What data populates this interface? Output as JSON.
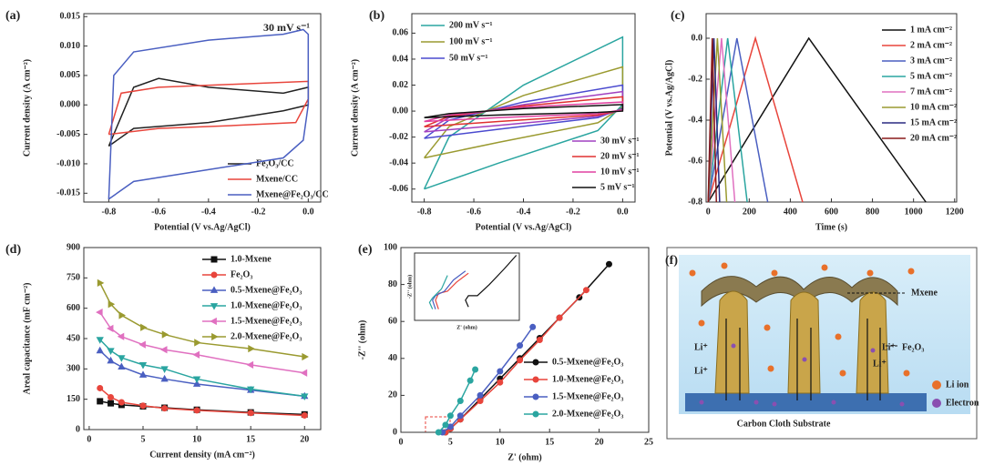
{
  "chart_data": [
    {
      "type": "line",
      "panel_label": "(a)",
      "annotation": "30 mV s⁻¹",
      "xlabel": "Potential (V vs.Ag/AgCl)",
      "ylabel": "Current density (A cm⁻²)",
      "xlim": [
        -0.9,
        0.05
      ],
      "ylim": [
        -0.0165,
        0.0155
      ],
      "xticks": [
        -0.8,
        -0.6,
        -0.4,
        -0.2,
        {
          "value": 0,
          "label": "0.0"
        }
      ],
      "yticks": [
        -0.015,
        {
          "value": -0.01,
          "label": "-0.010"
        },
        -0.005,
        {
          "value": 0,
          "label": "0.000"
        },
        0.005,
        {
          "value": 0.01,
          "label": "0.010"
        },
        0.015
      ],
      "series": [
        {
          "name": "Fe₂O₃/CC",
          "color": "#222222",
          "x": [
            -0.8,
            -0.75,
            -0.7,
            -0.6,
            -0.4,
            -0.1,
            0,
            0,
            -0.1,
            -0.4,
            -0.7,
            -0.8
          ],
          "values": [
            -0.007,
            -0.002,
            0.003,
            0.0045,
            0.003,
            0.002,
            0.003,
            0,
            -0.001,
            -0.003,
            -0.004,
            -0.007
          ]
        },
        {
          "name": "Mxene/CC",
          "color": "#e8453c",
          "x": [
            -0.8,
            -0.75,
            -0.6,
            -0.3,
            0,
            0,
            -0.05,
            -0.3,
            -0.6,
            -0.8
          ],
          "values": [
            -0.005,
            0.002,
            0.003,
            0.0035,
            0.004,
            0.001,
            -0.003,
            -0.0035,
            -0.004,
            -0.005
          ]
        },
        {
          "name": "Mxene@Fe₂O₃/CC",
          "color": "#4a5fc1",
          "x": [
            -0.8,
            -0.78,
            -0.7,
            -0.4,
            -0.1,
            -0.02,
            0,
            0,
            -0.02,
            -0.1,
            -0.4,
            -0.7,
            -0.8
          ],
          "values": [
            -0.016,
            0.005,
            0.009,
            0.011,
            0.012,
            0.0128,
            0.012,
            0,
            -0.006,
            -0.009,
            -0.011,
            -0.013,
            -0.016
          ]
        }
      ]
    },
    {
      "type": "line",
      "panel_label": "(b)",
      "xlabel": "Potential (V vs.Ag/AgCl)",
      "ylabel": "Current density (A cm⁻²)",
      "xlim": [
        -0.85,
        0.05
      ],
      "ylim": [
        -0.07,
        0.075
      ],
      "xticks": [
        -0.8,
        -0.6,
        -0.4,
        -0.2,
        {
          "value": 0,
          "label": "0.0"
        }
      ],
      "yticks": [
        -0.06,
        -0.04,
        -0.02,
        {
          "value": 0,
          "label": "0.00"
        },
        0.02,
        0.04,
        0.06
      ],
      "series": [
        {
          "name": "200 mV s⁻¹",
          "color": "#2aa5a0",
          "x": [
            -0.8,
            -0.7,
            -0.4,
            0,
            0,
            -0.1,
            -0.5,
            -0.8
          ],
          "values": [
            -0.06,
            -0.02,
            0.02,
            0.057,
            0.005,
            -0.015,
            -0.04,
            -0.06
          ]
        },
        {
          "name": "100 mV s⁻¹",
          "color": "#9a9a30",
          "x": [
            -0.8,
            -0.7,
            -0.4,
            0,
            0,
            -0.1,
            -0.5,
            -0.8
          ],
          "values": [
            -0.036,
            -0.012,
            0.012,
            0.034,
            0.003,
            -0.009,
            -0.024,
            -0.036
          ]
        },
        {
          "name": "50 mV s⁻¹",
          "color": "#4a4acf",
          "x": [
            -0.8,
            -0.7,
            -0.4,
            0,
            0,
            -0.1,
            -0.5,
            -0.8
          ],
          "values": [
            -0.021,
            -0.007,
            0.007,
            0.02,
            0.002,
            -0.005,
            -0.014,
            -0.021
          ]
        },
        {
          "name": "30 mV s⁻¹",
          "color": "#a040c0",
          "x": [
            -0.8,
            -0.7,
            -0.4,
            0,
            0,
            -0.1,
            -0.5,
            -0.8
          ],
          "values": [
            -0.016,
            -0.005,
            0.005,
            0.015,
            0.001,
            -0.004,
            -0.011,
            -0.016
          ]
        },
        {
          "name": "20 mV s⁻¹",
          "color": "#e03030",
          "x": [
            -0.8,
            -0.7,
            -0.4,
            0,
            0,
            -0.1,
            -0.5,
            -0.8
          ],
          "values": [
            -0.012,
            -0.004,
            0.004,
            0.011,
            0.001,
            -0.003,
            -0.008,
            -0.012
          ]
        },
        {
          "name": "10 mV s⁻¹",
          "color": "#e040a0",
          "x": [
            -0.8,
            -0.7,
            -0.4,
            0,
            0,
            -0.1,
            -0.5,
            -0.8
          ],
          "values": [
            -0.008,
            -0.003,
            0.003,
            0.007,
            0.001,
            -0.002,
            -0.005,
            -0.008
          ]
        },
        {
          "name": "5 mV s⁻¹",
          "color": "#111111",
          "x": [
            -0.8,
            -0.7,
            -0.4,
            0,
            0,
            -0.1,
            -0.5,
            -0.8
          ],
          "values": [
            -0.005,
            -0.002,
            0.002,
            0.005,
            0,
            -0.001,
            -0.003,
            -0.005
          ]
        }
      ]
    },
    {
      "type": "line",
      "panel_label": "(c)",
      "xlabel": "Time (s)",
      "ylabel": "Potential (V vs.Ag/AgCl)",
      "xlim": [
        -10,
        1210
      ],
      "ylim": [
        -0.8,
        0.12
      ],
      "xticks": [
        0,
        200,
        400,
        600,
        800,
        1000,
        1200
      ],
      "yticks": [
        -0.8,
        -0.6,
        -0.4,
        -0.2,
        {
          "value": 0,
          "label": "0.0"
        }
      ],
      "series": [
        {
          "name": "1 mA cm⁻²",
          "color": "#111111",
          "x": [
            0,
            490,
            1060
          ],
          "values": [
            -0.8,
            0,
            -0.8
          ]
        },
        {
          "name": "2 mA cm⁻²",
          "color": "#e8453c",
          "x": [
            0,
            230,
            460
          ],
          "values": [
            -0.8,
            0,
            -0.8
          ]
        },
        {
          "name": "3 mA cm⁻²",
          "color": "#4a5fc1",
          "x": [
            0,
            140,
            290
          ],
          "values": [
            -0.8,
            0,
            -0.8
          ]
        },
        {
          "name": "5 mA cm⁻²",
          "color": "#2aa5a0",
          "x": [
            0,
            95,
            190
          ],
          "values": [
            -0.8,
            0,
            -0.8
          ]
        },
        {
          "name": "7 mA cm⁻²",
          "color": "#e070c0",
          "x": [
            0,
            65,
            130
          ],
          "values": [
            -0.8,
            0,
            -0.8
          ]
        },
        {
          "name": "10 mA cm⁻²",
          "color": "#9a9a30",
          "x": [
            0,
            45,
            90
          ],
          "values": [
            -0.8,
            0,
            -0.8
          ]
        },
        {
          "name": "15 mA cm⁻²",
          "color": "#2a2a80",
          "x": [
            0,
            28,
            56
          ],
          "values": [
            -0.8,
            0,
            -0.8
          ]
        },
        {
          "name": "20 mA cm⁻²",
          "color": "#8a1a1a",
          "x": [
            0,
            20,
            40
          ],
          "values": [
            -0.8,
            0,
            -0.8
          ]
        }
      ]
    },
    {
      "type": "line",
      "panel_label": "(d)",
      "xlabel": "Current density (mA cm⁻²)",
      "ylabel": "Areal capacitance (mF cm⁻²)",
      "xlim": [
        -0.5,
        21.5
      ],
      "ylim": [
        0,
        900
      ],
      "xticks": [
        0,
        5,
        10,
        15,
        20
      ],
      "yticks": [
        0,
        150,
        300,
        450,
        600,
        750,
        900
      ],
      "x": [
        1,
        2,
        3,
        5,
        7,
        10,
        15,
        20
      ],
      "series": [
        {
          "name": "1.0-Mxene",
          "color": "#111111",
          "marker": "square",
          "values": [
            140,
            130,
            122,
            115,
            108,
            98,
            85,
            75
          ]
        },
        {
          "name": "Fe₂O₃",
          "color": "#e8453c",
          "marker": "circle",
          "values": [
            205,
            160,
            135,
            118,
            105,
            95,
            82,
            70
          ]
        },
        {
          "name": "0.5-Mxene@Fe₂O₃",
          "color": "#4a5fc1",
          "marker": "tri-up",
          "values": [
            390,
            340,
            310,
            270,
            250,
            225,
            195,
            165
          ]
        },
        {
          "name": "1.0-Mxene@Fe₂O₃",
          "color": "#2aa5a0",
          "marker": "tri-down",
          "values": [
            445,
            390,
            355,
            320,
            300,
            250,
            200,
            165
          ]
        },
        {
          "name": "1.5-Mxene@Fe₂O₃",
          "color": "#e070c0",
          "marker": "tri-left",
          "values": [
            580,
            500,
            460,
            420,
            395,
            370,
            320,
            280
          ]
        },
        {
          "name": "2.0-Mxene@Fe₂O₃",
          "color": "#9a9a30",
          "marker": "tri-right",
          "values": [
            725,
            620,
            565,
            505,
            470,
            430,
            400,
            360
          ]
        }
      ]
    },
    {
      "type": "line",
      "panel_label": "(e)",
      "xlabel": "Z' (ohm)",
      "ylabel": "-Z'' (ohm)",
      "xlim": [
        0,
        25
      ],
      "ylim": [
        0,
        100
      ],
      "xticks": [
        0,
        5,
        10,
        15,
        20,
        25
      ],
      "yticks": [
        0,
        20,
        40,
        60,
        80,
        100
      ],
      "series": [
        {
          "name": "0.5-Mxene@Fe₂O₃",
          "color": "#111111",
          "marker": "circle",
          "x": [
            4.5,
            5,
            6,
            8,
            10,
            12,
            14,
            16,
            18,
            21
          ],
          "values": [
            0,
            2,
            7,
            18,
            29,
            40,
            51,
            62,
            73,
            91
          ]
        },
        {
          "name": "1.0-Mxene@Fe₂O₃",
          "color": "#e8453c",
          "marker": "circle",
          "x": [
            4.5,
            5,
            6,
            8,
            10,
            12,
            14,
            16,
            18.7
          ],
          "values": [
            0,
            2,
            7,
            17,
            27,
            39,
            50,
            62,
            77
          ]
        },
        {
          "name": "1.5-Mxene@Fe₂O₃",
          "color": "#4a5fc1",
          "marker": "circle",
          "x": [
            4.2,
            5,
            6,
            8,
            10,
            12,
            13.3
          ],
          "values": [
            0,
            3,
            9,
            20,
            33,
            47,
            57
          ]
        },
        {
          "name": "2.0-Mxene@Fe₂O₃",
          "color": "#2aa5a0",
          "marker": "circle",
          "x": [
            3.8,
            4.5,
            5,
            6,
            7,
            7.5
          ],
          "values": [
            0,
            4,
            9,
            17,
            28,
            34
          ]
        }
      ],
      "inset": {
        "xlabel": "Z' (ohm)",
        "ylabel": "-Z'' (ohm)",
        "xlim": [
          2.5,
          6
        ],
        "ylim": [
          0,
          3
        ],
        "series": [
          {
            "color": "#111111",
            "x": [
              4.3,
              4.2,
              4.3,
              4.6,
              5.0,
              5.5,
              5.9
            ],
            "values": [
              0.6,
              0.9,
              1.1,
              1.1,
              1.6,
              2.3,
              2.9
            ]
          },
          {
            "color": "#e8453c",
            "x": [
              3.3,
              3.2,
              3.3,
              3.6,
              3.9,
              4.3
            ],
            "values": [
              0.5,
              0.9,
              1.2,
              1.3,
              1.7,
              2.1
            ]
          },
          {
            "color": "#4a5fc1",
            "x": [
              3.2,
              3.1,
              3.2,
              3.5,
              3.8,
              4.2
            ],
            "values": [
              0.5,
              0.9,
              1.1,
              1.3,
              1.8,
              2.2
            ]
          },
          {
            "color": "#2aa5a0",
            "x": [
              3.1,
              3.0,
              3.1,
              3.4,
              3.6
            ],
            "values": [
              0.5,
              0.8,
              1.0,
              1.4,
              2.0
            ]
          }
        ]
      }
    }
  ],
  "diagram": {
    "panel_label": "(f)",
    "mxene": "Mxene",
    "fe2o3": "Fe₂O₃",
    "li": [
      "Li⁺",
      "Li⁺",
      "Li⁺",
      "Li⁺"
    ],
    "legend": [
      "Li ion",
      "Electron"
    ],
    "substrate": "Carbon Cloth Substrate"
  }
}
